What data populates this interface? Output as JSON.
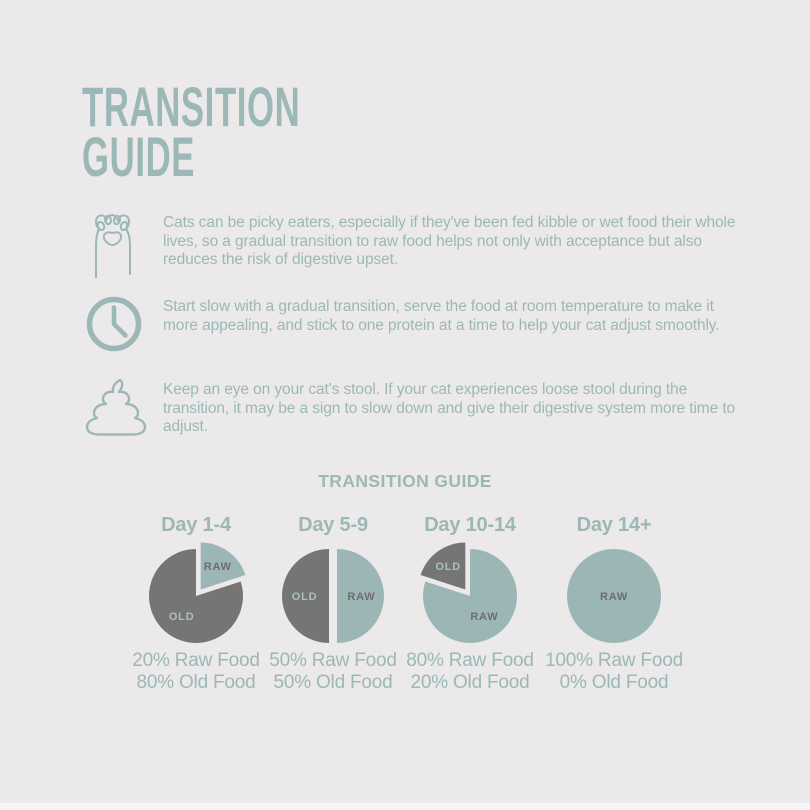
{
  "theme": {
    "background": "#ebe9e9",
    "accent": "#9cb8b6",
    "pie_raw_color": "#9bb6b4",
    "pie_old_color": "#767575",
    "raw_label_color": "#6d6d6d",
    "old_label_color": "#a9c1bf",
    "bottom_strip": "#f7f6f6"
  },
  "header": {
    "title_line1": "TRANSITION",
    "title_line2": "GUIDE"
  },
  "tips": [
    {
      "icon": "cat-paw-icon",
      "text": "Cats can be picky eaters, especially if they've been fed kibble or wet food their whole lives, so a gradual transition to raw food helps not only with acceptance but also reduces the risk of digestive upset."
    },
    {
      "icon": "clock-icon",
      "text": "Start slow with a gradual transition, serve the food at room temperature to make it more appealing, and stick to one protein at a time to help your cat adjust smoothly."
    },
    {
      "icon": "poop-icon",
      "text": "Keep an eye on your cat's stool. If your cat experiences loose stool during the transition, it may be a sign to slow down and give their digestive system more time to adjust."
    }
  ],
  "chart_section": {
    "title": "TRANSITION GUIDE"
  },
  "chart_data": {
    "type": "pie",
    "title": "TRANSITION GUIDE",
    "legend": [
      "RAW",
      "OLD"
    ],
    "layout": {
      "columns": 4,
      "start_angle_deg": 0,
      "direction": "clockwise",
      "explode_minority_slice": true
    },
    "charts": [
      {
        "label": "Day 1-4",
        "slices": [
          {
            "name": "RAW",
            "pct": 20,
            "color": "#9bb6b4",
            "label_color": "#6d6d6d"
          },
          {
            "name": "OLD",
            "pct": 80,
            "color": "#767575",
            "label_color": "#a9c1bf"
          }
        ],
        "caption_raw": "20% Raw Food",
        "caption_old": "80% Old Food"
      },
      {
        "label": "Day 5-9",
        "slices": [
          {
            "name": "RAW",
            "pct": 50,
            "color": "#9bb6b4",
            "label_color": "#6d6d6d"
          },
          {
            "name": "OLD",
            "pct": 50,
            "color": "#767575",
            "label_color": "#a9c1bf"
          }
        ],
        "caption_raw": "50% Raw Food",
        "caption_old": "50% Old Food"
      },
      {
        "label": "Day 10-14",
        "slices": [
          {
            "name": "RAW",
            "pct": 80,
            "color": "#9bb6b4",
            "label_color": "#6d6d6d"
          },
          {
            "name": "OLD",
            "pct": 20,
            "color": "#767575",
            "label_color": "#a9c1bf"
          }
        ],
        "caption_raw": "80% Raw Food",
        "caption_old": "20% Old Food"
      },
      {
        "label": "Day 14+",
        "slices": [
          {
            "name": "RAW",
            "pct": 100,
            "color": "#9bb6b4",
            "label_color": "#6d6d6d"
          },
          {
            "name": "OLD",
            "pct": 0,
            "color": "#767575",
            "label_color": "#a9c1bf"
          }
        ],
        "caption_raw": "100% Raw Food",
        "caption_old": "0% Old Food"
      }
    ]
  }
}
